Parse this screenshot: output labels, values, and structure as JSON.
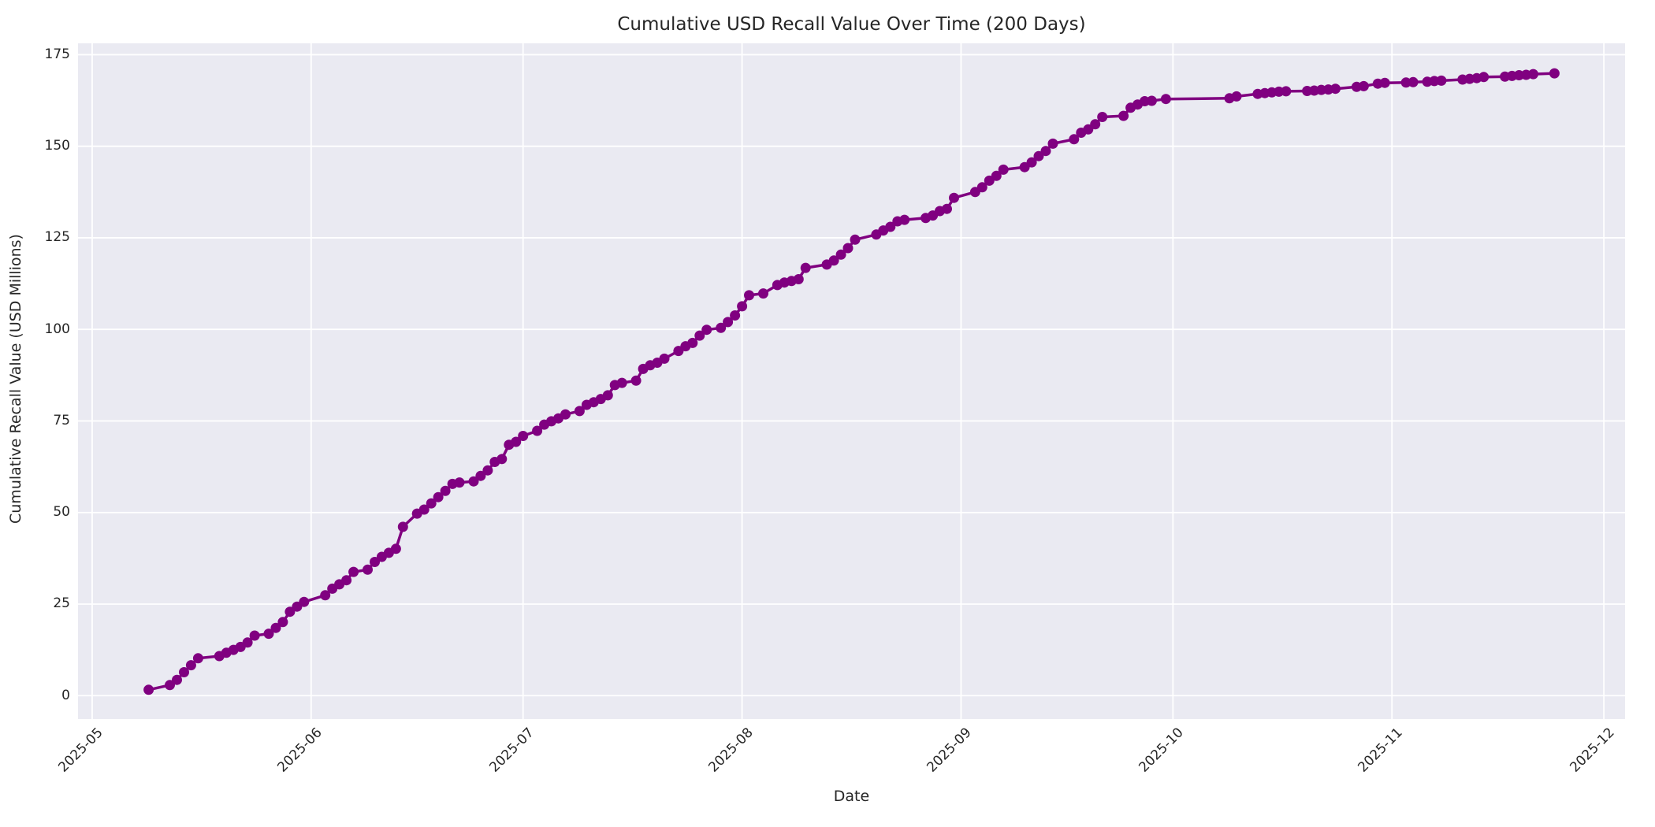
{
  "figure": {
    "title": "Cumulative USD Recall Value Over Time (200 Days)",
    "xlabel": "Date",
    "ylabel": "Cumulative Recall Value (USD Millions)"
  },
  "chart_data": {
    "type": "line",
    "title": "Cumulative USD Recall Value Over Time (200 Days)",
    "xlabel": "Date",
    "ylabel": "Cumulative Recall Value (USD Millions)",
    "grid": true,
    "legend": false,
    "style": {
      "axes_background": "#EAEAF2",
      "grid_color": "#FFFFFF",
      "text_color": "#262626",
      "line_color": "#800080",
      "marker": "o",
      "line_width": 3.5,
      "marker_radius": 6.5
    },
    "xlim": [
      "2025-04-29",
      "2025-12-04"
    ],
    "ylim": [
      -6.4,
      178.1
    ],
    "yticks": [
      0,
      25,
      50,
      75,
      100,
      125,
      150,
      175
    ],
    "xticks": {
      "values": [
        "2025-05-01",
        "2025-06-01",
        "2025-07-01",
        "2025-08-01",
        "2025-09-01",
        "2025-10-01",
        "2025-11-01",
        "2025-12-01"
      ],
      "labels": [
        "2025-05",
        "2025-06",
        "2025-07",
        "2025-08",
        "2025-09",
        "2025-10",
        "2025-11",
        "2025-12"
      ]
    },
    "series": [
      {
        "name": "Cumulative Recall Value",
        "color": "#800080",
        "x": [
          "2025-05-09",
          "2025-05-12",
          "2025-05-13",
          "2025-05-14",
          "2025-05-15",
          "2025-05-16",
          "2025-05-19",
          "2025-05-20",
          "2025-05-21",
          "2025-05-22",
          "2025-05-23",
          "2025-05-24",
          "2025-05-26",
          "2025-05-27",
          "2025-05-28",
          "2025-05-29",
          "2025-05-30",
          "2025-05-31",
          "2025-06-03",
          "2025-06-04",
          "2025-06-05",
          "2025-06-06",
          "2025-06-07",
          "2025-06-09",
          "2025-06-10",
          "2025-06-11",
          "2025-06-12",
          "2025-06-13",
          "2025-06-14",
          "2025-06-16",
          "2025-06-17",
          "2025-06-18",
          "2025-06-19",
          "2025-06-20",
          "2025-06-21",
          "2025-06-22",
          "2025-06-24",
          "2025-06-25",
          "2025-06-26",
          "2025-06-27",
          "2025-06-28",
          "2025-06-29",
          "2025-06-30",
          "2025-07-01",
          "2025-07-03",
          "2025-07-04",
          "2025-07-05",
          "2025-07-06",
          "2025-07-07",
          "2025-07-09",
          "2025-07-10",
          "2025-07-11",
          "2025-07-12",
          "2025-07-13",
          "2025-07-14",
          "2025-07-15",
          "2025-07-17",
          "2025-07-18",
          "2025-07-19",
          "2025-07-20",
          "2025-07-21",
          "2025-07-23",
          "2025-07-24",
          "2025-07-25",
          "2025-07-26",
          "2025-07-27",
          "2025-07-29",
          "2025-07-30",
          "2025-07-31",
          "2025-08-01",
          "2025-08-02",
          "2025-08-04",
          "2025-08-06",
          "2025-08-07",
          "2025-08-08",
          "2025-08-09",
          "2025-08-10",
          "2025-08-13",
          "2025-08-14",
          "2025-08-15",
          "2025-08-16",
          "2025-08-17",
          "2025-08-20",
          "2025-08-21",
          "2025-08-22",
          "2025-08-23",
          "2025-08-24",
          "2025-08-27",
          "2025-08-28",
          "2025-08-29",
          "2025-08-30",
          "2025-08-31",
          "2025-09-03",
          "2025-09-04",
          "2025-09-05",
          "2025-09-06",
          "2025-09-07",
          "2025-09-10",
          "2025-09-11",
          "2025-09-12",
          "2025-09-13",
          "2025-09-14",
          "2025-09-17",
          "2025-09-18",
          "2025-09-19",
          "2025-09-20",
          "2025-09-21",
          "2025-09-24",
          "2025-09-25",
          "2025-09-26",
          "2025-09-27",
          "2025-09-28",
          "2025-09-30",
          "2025-10-09",
          "2025-10-10",
          "2025-10-13",
          "2025-10-14",
          "2025-10-15",
          "2025-10-16",
          "2025-10-17",
          "2025-10-20",
          "2025-10-21",
          "2025-10-22",
          "2025-10-23",
          "2025-10-24",
          "2025-10-27",
          "2025-10-28",
          "2025-10-30",
          "2025-10-31",
          "2025-11-03",
          "2025-11-04",
          "2025-11-06",
          "2025-11-07",
          "2025-11-08",
          "2025-11-11",
          "2025-11-12",
          "2025-11-13",
          "2025-11-14",
          "2025-11-17",
          "2025-11-18",
          "2025-11-19",
          "2025-11-20",
          "2025-11-21",
          "2025-11-24"
        ],
        "values": [
          1.6,
          2.9,
          4.3,
          6.4,
          8.3,
          10.2,
          10.8,
          11.7,
          12.5,
          13.3,
          14.5,
          16.4,
          16.9,
          18.5,
          20.1,
          22.9,
          24.3,
          25.6,
          27.4,
          29.2,
          30.4,
          31.5,
          33.8,
          34.4,
          36.5,
          37.9,
          39.0,
          40.1,
          46.1,
          49.7,
          50.8,
          52.5,
          54.2,
          55.9,
          57.8,
          58.2,
          58.5,
          60.0,
          61.5,
          63.8,
          64.6,
          68.5,
          69.3,
          70.9,
          72.3,
          74.0,
          74.9,
          75.7,
          76.8,
          77.7,
          79.4,
          80.1,
          81.0,
          82.0,
          84.8,
          85.4,
          86.0,
          89.2,
          90.2,
          90.9,
          92.0,
          94.1,
          95.4,
          96.3,
          98.3,
          99.9,
          100.4,
          102.0,
          103.8,
          106.3,
          109.3,
          109.8,
          112.1,
          112.8,
          113.2,
          113.7,
          116.8,
          117.7,
          118.8,
          120.4,
          122.2,
          124.5,
          125.9,
          127.0,
          128.0,
          129.5,
          129.9,
          130.4,
          131.1,
          132.3,
          132.9,
          135.9,
          137.5,
          138.8,
          140.6,
          141.9,
          143.6,
          144.3,
          145.6,
          147.3,
          148.7,
          150.7,
          151.9,
          153.7,
          154.6,
          156.0,
          158.0,
          158.3,
          160.5,
          161.4,
          162.3,
          162.4,
          162.9,
          163.1,
          163.6,
          164.3,
          164.5,
          164.7,
          164.9,
          165.0,
          165.1,
          165.2,
          165.4,
          165.5,
          165.7,
          166.2,
          166.4,
          167.1,
          167.3,
          167.4,
          167.5,
          167.6,
          167.8,
          167.9,
          168.2,
          168.4,
          168.6,
          168.9,
          169.0,
          169.2,
          169.4,
          169.5,
          169.7,
          169.9
        ]
      }
    ]
  }
}
